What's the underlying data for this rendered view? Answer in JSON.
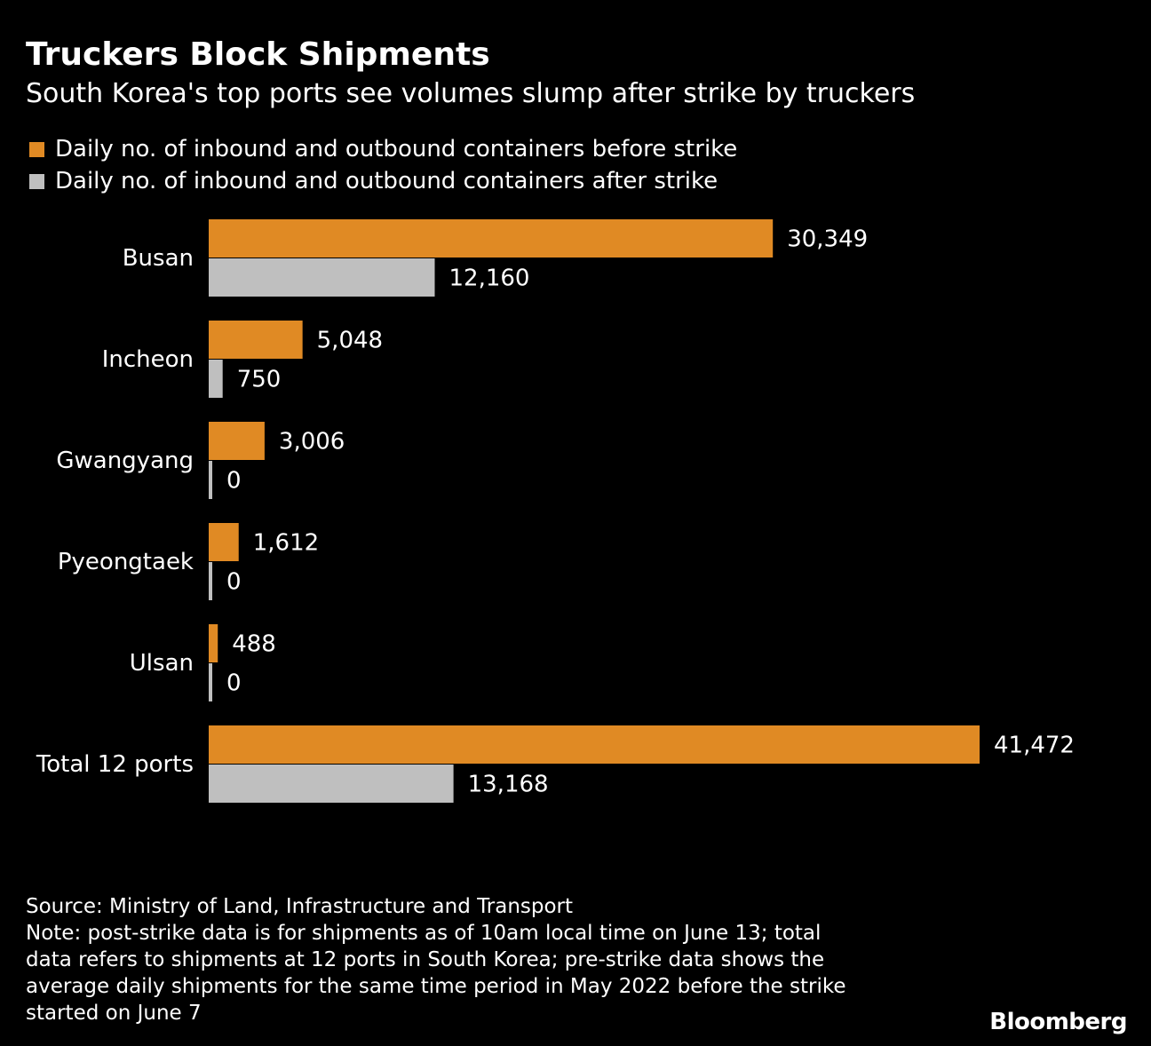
{
  "chart_data": {
    "type": "bar",
    "orientation": "horizontal",
    "title": "Truckers Block Shipments",
    "subtitle": "South Korea's top ports see volumes slump after strike by truckers",
    "categories": [
      "Busan",
      "Incheon",
      "Gwangyang",
      "Pyeongtaek",
      "Ulsan",
      "Total 12 ports"
    ],
    "series": [
      {
        "name": "Daily no. of inbound and outbound containers before strike",
        "color": "#e08a24",
        "values": [
          30349,
          5048,
          3006,
          1612,
          488,
          41472
        ],
        "labels": [
          "30,349",
          "5,048",
          "3,006",
          "1,612",
          "488",
          "41,472"
        ]
      },
      {
        "name": "Daily no. of inbound and outbound containers after strike",
        "color": "#bfbfbf",
        "values": [
          12160,
          750,
          0,
          0,
          0,
          13168
        ],
        "labels": [
          "12,160",
          "750",
          "0",
          "0",
          "0",
          "13,168"
        ]
      }
    ],
    "xlim": [
      0,
      41472
    ],
    "legend_position": "top-left",
    "grid": false
  },
  "footer": {
    "source": "Source: Ministry of Land, Infrastructure and Transport",
    "note_lines": [
      "Note: post-strike data is for shipments as of 10am local time on June 13; total",
      "data refers to shipments at 12 ports in South Korea; pre-strike data shows the",
      "average daily shipments for the same time period in May 2022 before the strike",
      "started on June 7"
    ]
  },
  "brand": "Bloomberg"
}
